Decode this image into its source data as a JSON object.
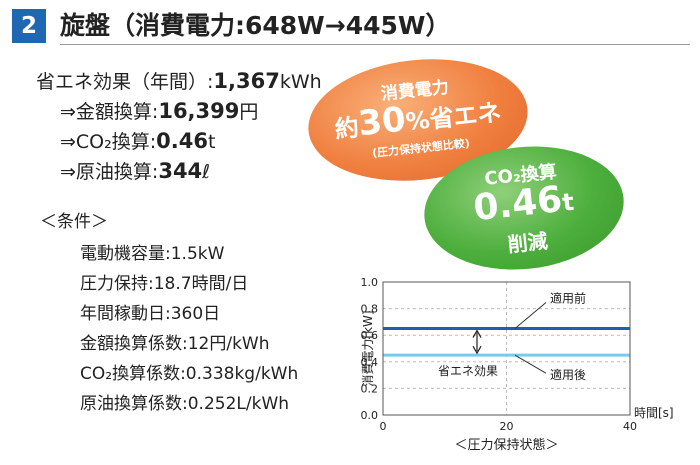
{
  "header": {
    "number": "2",
    "title": "旋盤（消費電力:648W→445W）"
  },
  "effect": {
    "main": {
      "label": "省エネ効果（年間）:",
      "value": "1,367",
      "unit": "kWh"
    },
    "items": [
      {
        "label": "⇒金額換算:",
        "value": "16,399",
        "unit": "円"
      },
      {
        "label": "⇒CO₂換算:",
        "value": "0.46",
        "unit": "t"
      },
      {
        "label": "⇒原油換算:",
        "value": "344",
        "unit": "ℓ"
      }
    ]
  },
  "conditions": {
    "heading": "＜条件＞",
    "items": [
      "電動機容量:1.5kW",
      "圧力保持:18.7時間/日",
      "年間稼動日:360日",
      "金額換算係数:12円/kWh",
      "CO₂換算係数:0.338kg/kWh",
      "原油換算係数:0.252L/kWh"
    ]
  },
  "badge_energy": {
    "title": "消費電力",
    "prefix": "約",
    "value": "30",
    "unit": "%",
    "suffix": "省エネ",
    "note": "(圧力保持状態比較)",
    "color": "#f08040"
  },
  "badge_co2": {
    "title": "CO₂換算",
    "value": "0.46",
    "unit": "t",
    "suffix": "削減",
    "color": "#4cae3c"
  },
  "chart_data": {
    "type": "line",
    "ylabel": "消費電力[kW]",
    "xlabel": "時間[s]",
    "caption": "＜圧力保持状態＞",
    "xlim": [
      0,
      40
    ],
    "ylim": [
      0,
      1.0
    ],
    "xticks": [
      "0",
      "20",
      "40"
    ],
    "yticks": [
      "0.0",
      "0.2",
      "0.4",
      "0.6",
      "0.8",
      "1.0"
    ],
    "grid": true,
    "series": [
      {
        "name": "適用前",
        "color": "#1f5fb0",
        "x": [
          0,
          10,
          20,
          30,
          40
        ],
        "y": [
          0.65,
          0.65,
          0.65,
          0.65,
          0.65
        ]
      },
      {
        "name": "適用後",
        "color": "#7ec8ee",
        "x": [
          0,
          10,
          20,
          30,
          40
        ],
        "y": [
          0.45,
          0.45,
          0.45,
          0.45,
          0.45
        ]
      }
    ],
    "annotation": "省エネ効果"
  }
}
